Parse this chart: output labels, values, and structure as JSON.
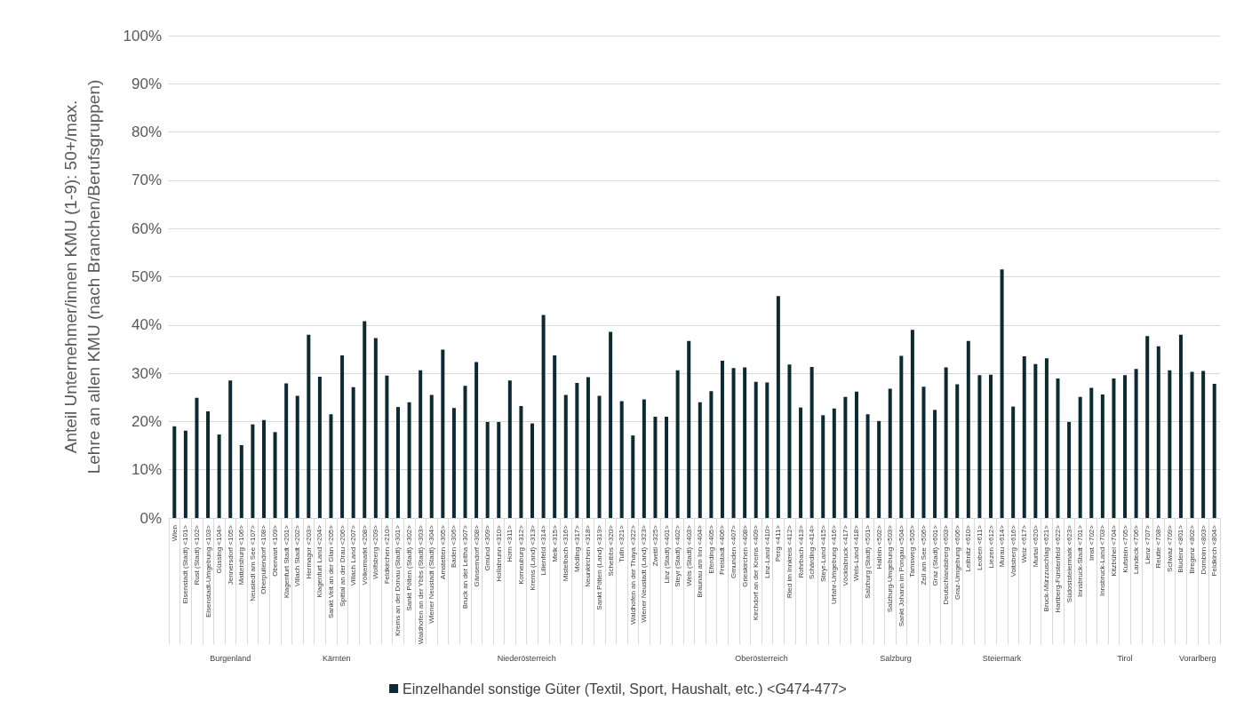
{
  "chart_data": {
    "type": "bar",
    "ylabel": "Anteil Unternehmer/innen KMU (1-9): 50+/max. Lehre an allen KMU (nach Branchen/Berufsgruppen)",
    "categories": [
      "Wien",
      "Eisenstadt (Stadt) <101>",
      "Rust (Stadt) <102>",
      "Eisenstadt-Umgebung <103>",
      "Güssing <104>",
      "Jennersdorf <105>",
      "Mattersburg <106>",
      "Neusiedl am See <107>",
      "Oberpullendorf <108>",
      "Oberwart <109>",
      "Klagenfurt Stadt <201>",
      "Villach Stadt <202>",
      "Hermagor <203>",
      "Klagenfurt Land <204>",
      "Sankt Veit an der Glan <205>",
      "Spittal an der Drau <206>",
      "Villach Land <207>",
      "Völkermarkt <208>",
      "Wolfsberg <209>",
      "Feldkirchen <210>",
      "Krems an der Donau (Stadt) <301>",
      "Sankt Pölten (Stadt) <302>",
      "Waidhofen an der Ybbs (Stadt) <303>",
      "Wiener Neustadt (Stadt) <304>",
      "Amstetten <305>",
      "Baden <306>",
      "Bruck an der Leitha <307>",
      "Gänserndorf <308>",
      "Gmünd <309>",
      "Hollabrunn <310>",
      "Horn <311>",
      "Korneuburg <312>",
      "Krems (Land) <313>",
      "Lilienfeld <314>",
      "Melk <315>",
      "Mistelbach <316>",
      "Mödling <317>",
      "Neunkirchen <318>",
      "Sankt Pölten (Land) <319>",
      "Scheibbs <320>",
      "Tulln <321>",
      "Waidhofen an der Thaya <322>",
      "Wiener Neustadt (Land) <323>",
      "Zwettl <325>",
      "Linz (Stadt) <401>",
      "Steyr (Stadt) <402>",
      "Wels (Stadt) <403>",
      "Braunau am Inn <404>",
      "Eferding <405>",
      "Freistadt <406>",
      "Gmunden <407>",
      "Grieskirchen <408>",
      "Kirchdorf an der Krems <409>",
      "Linz-Land <410>",
      "Perg <411>",
      "Ried im Innkreis <412>",
      "Rohrbach <413>",
      "Schärding <414>",
      "Steyr-Land <415>",
      "Urfahr-Umgebung <416>",
      "Vöcklabruck <417>",
      "Wels-Land <418>",
      "Salzburg (Stadt) <501>",
      "Hallein <502>",
      "Salzburg-Umgebung <503>",
      "Sankt Johann im Pongau <504>",
      "Tamsweg <505>",
      "Zell am See <506>",
      "Graz (Stadt) <601>",
      "Deutschlandsberg <603>",
      "Graz-Umgebung <606>",
      "Leibnitz <610>",
      "Leoben <611>",
      "Liezen <612>",
      "Murau <614>",
      "Voitsberg <616>",
      "Weiz <617>",
      "Murtal <620>",
      "Bruck-Mürzzuschlag <621>",
      "Hartberg-Fürstenfeld <622>",
      "Südoststeiermark <623>",
      "Innsbruck-Stadt <701>",
      "Imst <702>",
      "Innsbruck-Land <703>",
      "Kitzbühel <704>",
      "Kufstein <705>",
      "Landeck <706>",
      "Lienz <707>",
      "Reutte <708>",
      "Schwaz <709>",
      "Bludenz <801>",
      "Bregenz <802>",
      "Dornbirn <803>",
      "Feldkirch <804>"
    ],
    "series": [
      {
        "name": "Einzelhandel sonstige Güter (Textil, Sport, Haushalt, etc.) <G474-477>",
        "color": "#0b2a33",
        "values": [
          19.0,
          18.1,
          24.9,
          22.1,
          17.3,
          28.5,
          15.1,
          19.4,
          20.3,
          17.8,
          27.9,
          25.3,
          38.0,
          29.3,
          21.5,
          33.7,
          27.1,
          40.8,
          37.3,
          29.5,
          23.0,
          24.0,
          30.6,
          25.5,
          34.9,
          22.8,
          27.4,
          32.3,
          19.9,
          19.9,
          28.5,
          23.2,
          19.6,
          42.1,
          33.7,
          25.5,
          28.0,
          29.2,
          25.3,
          38.6,
          24.2,
          17.1,
          24.6,
          21.0,
          21.0,
          30.6,
          36.7,
          24.0,
          26.3,
          32.6,
          31.1,
          31.2,
          28.2,
          28.1,
          46.0,
          31.8,
          22.9,
          31.3,
          21.3,
          22.7,
          25.1,
          26.2,
          21.5,
          20.1,
          26.8,
          33.6,
          39.0,
          27.2,
          22.4,
          31.2,
          27.7,
          36.7,
          29.6,
          29.7,
          51.5,
          23.1,
          33.5,
          31.9,
          33.1,
          28.9,
          19.9,
          25.1,
          27.0,
          25.6,
          28.9,
          29.6,
          30.9,
          37.7,
          35.6,
          30.6,
          38.0,
          30.3,
          30.5,
          27.8
        ]
      }
    ],
    "ylim": [
      0,
      100
    ],
    "yticks": [
      {
        "value": 0,
        "label": "0%"
      },
      {
        "value": 10,
        "label": "10%"
      },
      {
        "value": 20,
        "label": "20%"
      },
      {
        "value": 30,
        "label": "30%"
      },
      {
        "value": 40,
        "label": "40%"
      },
      {
        "value": 50,
        "label": "50%"
      },
      {
        "value": 60,
        "label": "60%"
      },
      {
        "value": 70,
        "label": "70%"
      },
      {
        "value": 80,
        "label": "80%"
      },
      {
        "value": 90,
        "label": "90%"
      },
      {
        "value": 100,
        "label": "100%"
      }
    ],
    "grid": "y",
    "legend": "bottom",
    "annotations": [
      "Burgenland",
      "Kärnten",
      "Niederösterreich",
      "Oberösterreich",
      "Salzburg",
      "Steiermark",
      "Tirol",
      "Vorarlberg"
    ]
  }
}
